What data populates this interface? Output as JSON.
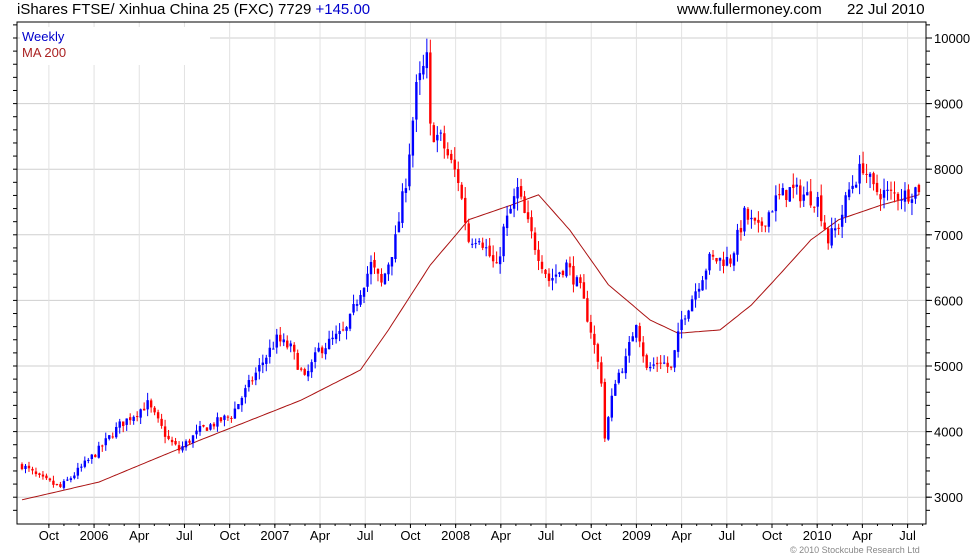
{
  "header": {
    "title": "iShares FTSE/ Xinhua China 25 (FXC) 7729",
    "change": "+145.00",
    "site": "www.fullermoney.com",
    "date": "22 Jul 2010"
  },
  "copyright": "© 2010 Stockcube Research Ltd",
  "colors": {
    "up": "#0000ff",
    "down": "#ff0000",
    "ma": "#aa1111",
    "grid": "#dddddd"
  },
  "chart_data": {
    "type": "candlestick",
    "title": "iShares FTSE/ Xinhua China 25 (FXC) 7729 +145.00",
    "legend": [
      "Weekly",
      "MA 200"
    ],
    "legend_placement": "top-left",
    "ylim": [
      2600,
      10200
    ],
    "yticks": [
      3000,
      4000,
      5000,
      6000,
      7000,
      8000,
      9000,
      10000
    ],
    "xtick_labels": [
      "Oct",
      "2006",
      "Apr",
      "Jul",
      "Oct",
      "2007",
      "Apr",
      "Jul",
      "Oct",
      "2008",
      "Apr",
      "Jul",
      "Oct",
      "2009",
      "Apr",
      "Jul",
      "Oct",
      "2010",
      "Apr",
      "Jul"
    ],
    "total_weeks": 258,
    "close_keypoints_week_value": [
      [
        0,
        3490
      ],
      [
        5,
        3290
      ],
      [
        11,
        3150
      ],
      [
        17,
        3450
      ],
      [
        22,
        3720
      ],
      [
        28,
        4100
      ],
      [
        36,
        4420
      ],
      [
        42,
        3870
      ],
      [
        45,
        3720
      ],
      [
        51,
        4020
      ],
      [
        60,
        4250
      ],
      [
        65,
        4710
      ],
      [
        71,
        5240
      ],
      [
        73,
        5400
      ],
      [
        77,
        5270
      ],
      [
        81,
        4790
      ],
      [
        85,
        5240
      ],
      [
        93,
        5550
      ],
      [
        97,
        6160
      ],
      [
        100,
        6540
      ],
      [
        103,
        6240
      ],
      [
        107,
        6920
      ],
      [
        110,
        7840
      ],
      [
        113,
        9210
      ],
      [
        114,
        9360
      ],
      [
        116,
        9660
      ],
      [
        117,
        8600
      ],
      [
        120,
        8450
      ],
      [
        125,
        7840
      ],
      [
        128,
        6920
      ],
      [
        131,
        7000
      ],
      [
        136,
        6460
      ],
      [
        138,
        7070
      ],
      [
        142,
        7680
      ],
      [
        144,
        7300
      ],
      [
        147,
        6840
      ],
      [
        151,
        6310
      ],
      [
        156,
        6540
      ],
      [
        160,
        6160
      ],
      [
        163,
        5550
      ],
      [
        166,
        4790
      ],
      [
        167,
        3900
      ],
      [
        170,
        4790
      ],
      [
        173,
        5090
      ],
      [
        176,
        5700
      ],
      [
        179,
        4940
      ],
      [
        183,
        5090
      ],
      [
        186,
        4940
      ],
      [
        189,
        5700
      ],
      [
        193,
        6160
      ],
      [
        197,
        6620
      ],
      [
        203,
        6620
      ],
      [
        207,
        7300
      ],
      [
        211,
        7070
      ],
      [
        216,
        7530
      ],
      [
        220,
        7680
      ],
      [
        224,
        7610
      ],
      [
        228,
        7530
      ],
      [
        231,
        6920
      ],
      [
        234,
        7150
      ],
      [
        237,
        7680
      ],
      [
        241,
        8060
      ],
      [
        244,
        7680
      ],
      [
        249,
        7610
      ],
      [
        253,
        7610
      ],
      [
        257,
        7729
      ]
    ],
    "ma200_keypoints_week_value": [
      [
        0,
        2960
      ],
      [
        22,
        3230
      ],
      [
        51,
        3870
      ],
      [
        80,
        4480
      ],
      [
        97,
        4940
      ],
      [
        105,
        5550
      ],
      [
        117,
        6540
      ],
      [
        128,
        7230
      ],
      [
        140,
        7450
      ],
      [
        148,
        7610
      ],
      [
        157,
        7070
      ],
      [
        168,
        6240
      ],
      [
        180,
        5700
      ],
      [
        188,
        5500
      ],
      [
        200,
        5550
      ],
      [
        209,
        5930
      ],
      [
        217,
        6390
      ],
      [
        226,
        6920
      ],
      [
        234,
        7230
      ],
      [
        246,
        7450
      ],
      [
        257,
        7610
      ]
    ]
  }
}
